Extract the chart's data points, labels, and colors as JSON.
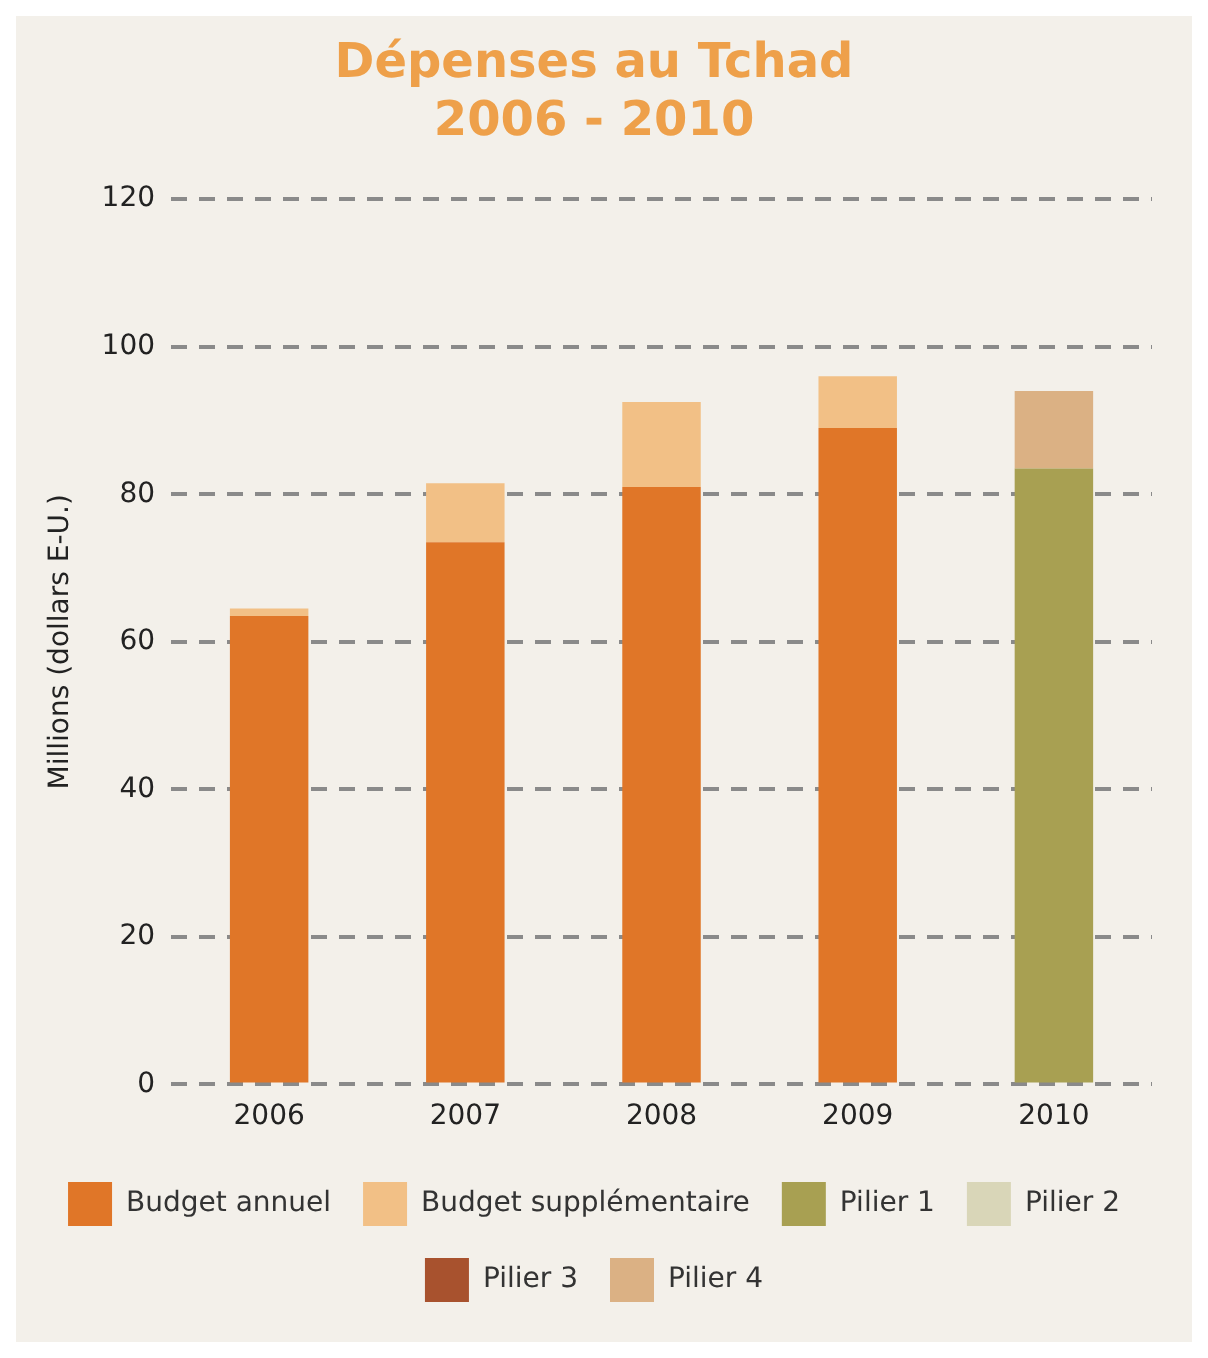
{
  "chart_data": {
    "type": "bar",
    "title": "Dépenses au Tchad\n2006 - 2010",
    "ylabel": "Millions (dollars E-U.)",
    "categories": [
      "2006",
      "2007",
      "2008",
      "2009",
      "2010"
    ],
    "stacked": true,
    "ylim": [
      0,
      120
    ],
    "yticks": [
      0,
      20,
      40,
      60,
      80,
      100,
      120
    ],
    "grid": "y",
    "legend": "bottom",
    "series": [
      {
        "name": "Budget annuel",
        "color": "#e07628",
        "values": [
          63.5,
          73.5,
          81,
          89,
          null
        ]
      },
      {
        "name": "Budget supplémentaire",
        "color": "#f2c086",
        "values": [
          1,
          8,
          11.5,
          7,
          null
        ]
      },
      {
        "name": "Pilier 1",
        "color": "#a8a052",
        "values": [
          null,
          null,
          null,
          null,
          83.5
        ]
      },
      {
        "name": "Pilier 2",
        "color": "#d9d6b8",
        "values": [
          null,
          null,
          null,
          null,
          null
        ]
      },
      {
        "name": "Pilier 3",
        "color": "#a8522e",
        "values": [
          null,
          null,
          null,
          null,
          null
        ]
      },
      {
        "name": "Pilier 4",
        "color": "#dbb184",
        "values": [
          null,
          null,
          null,
          null,
          10.5
        ]
      }
    ]
  }
}
